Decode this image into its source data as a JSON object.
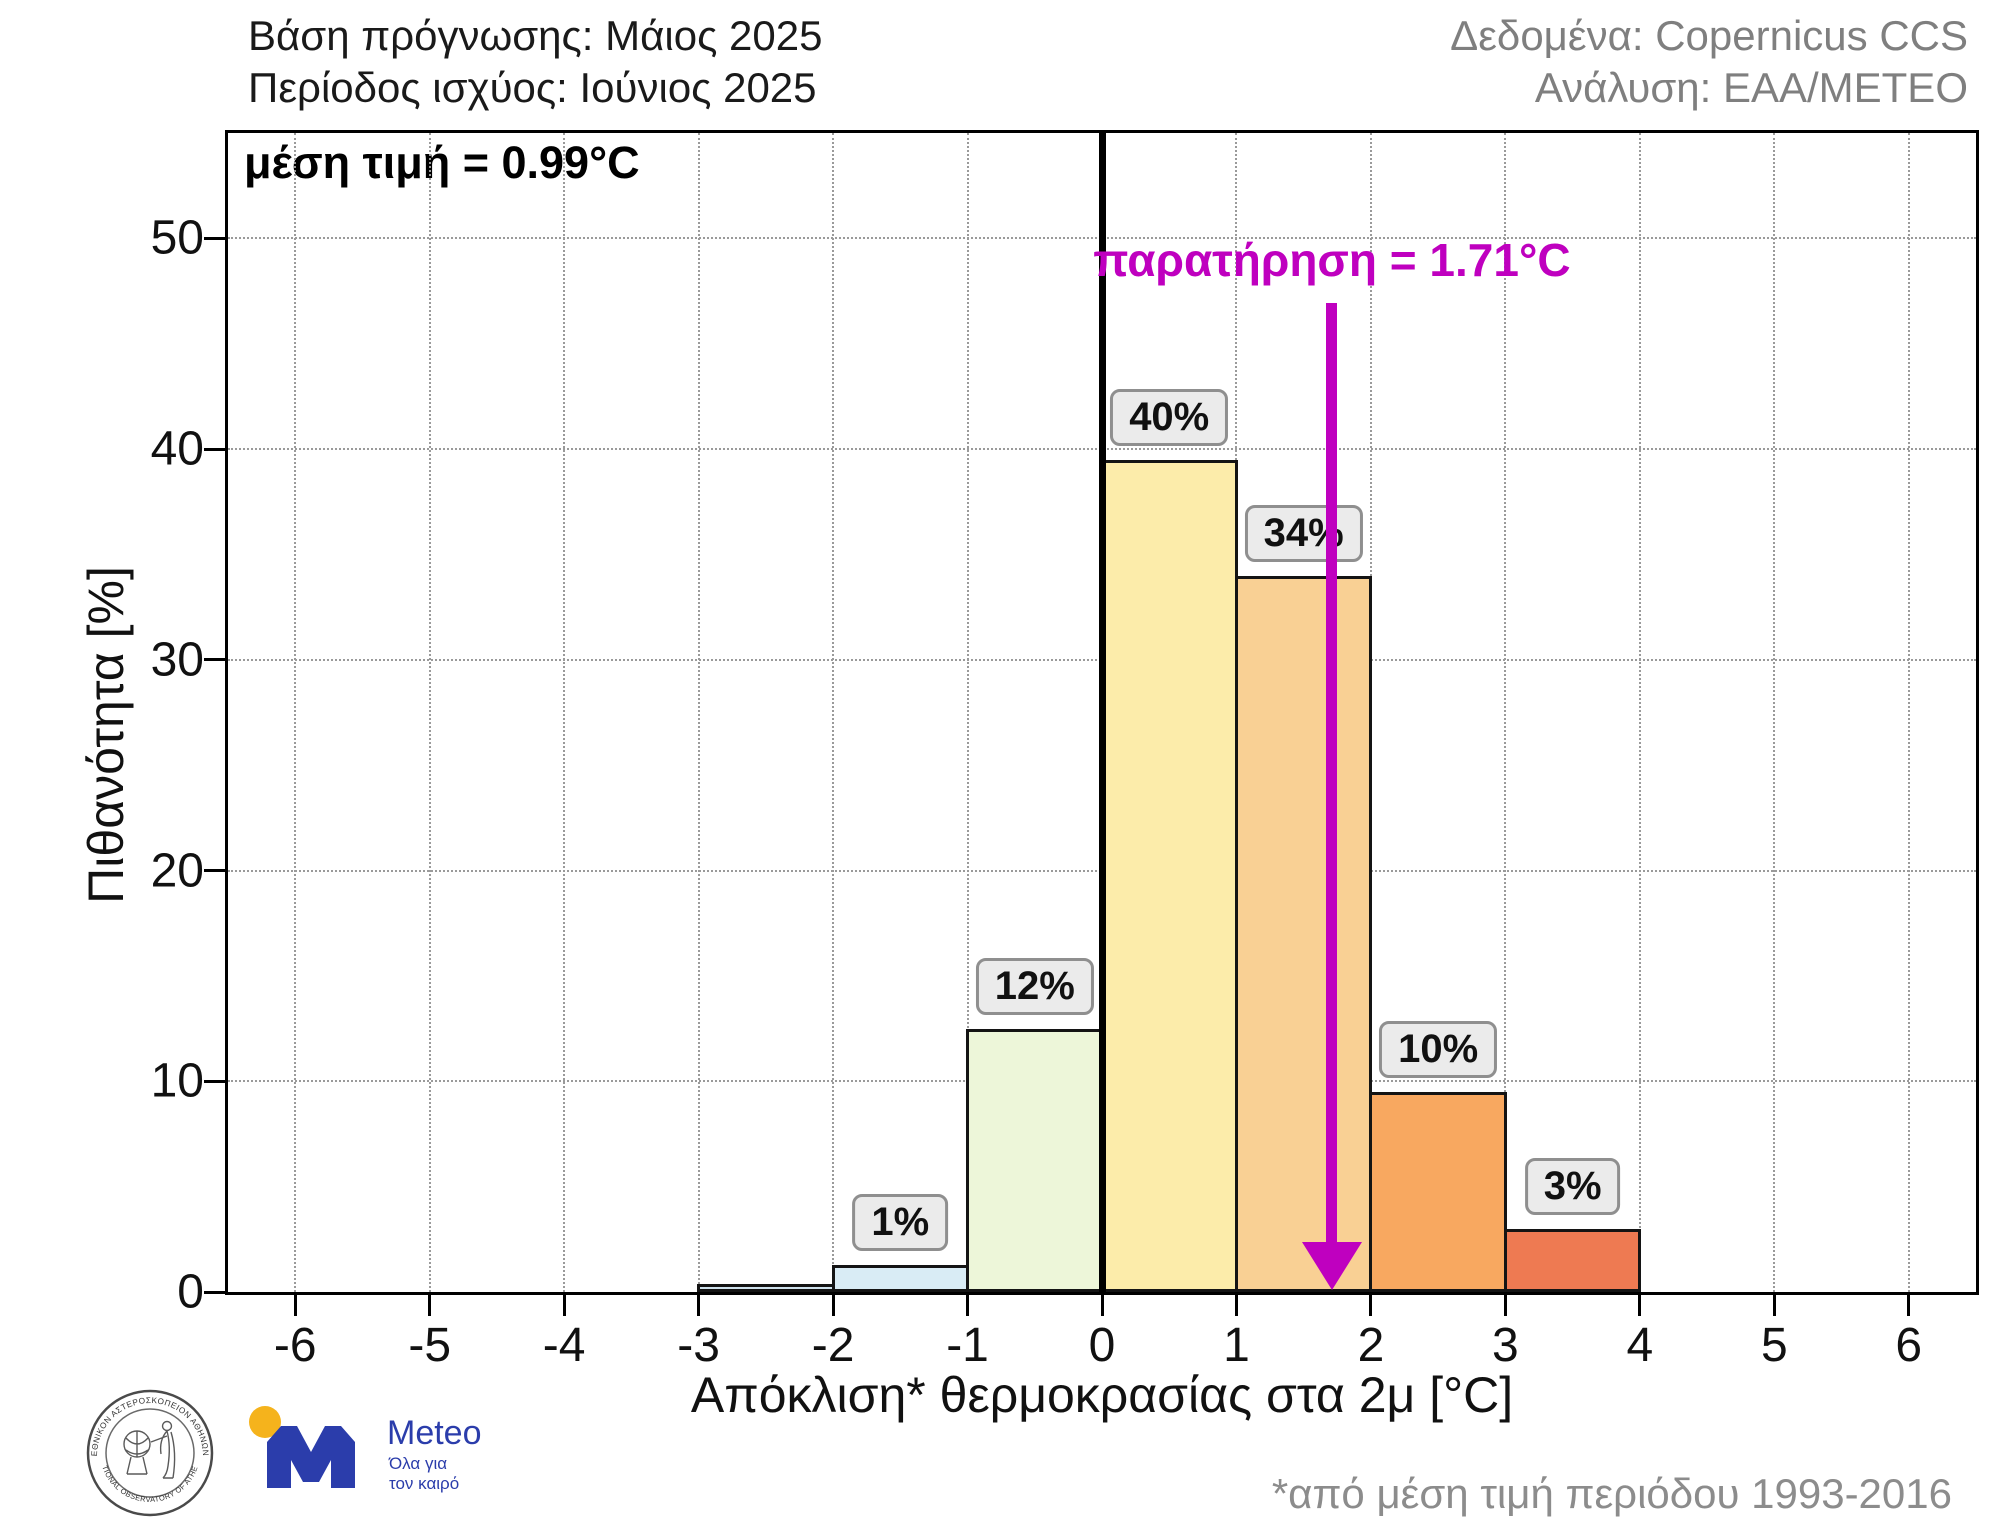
{
  "header": {
    "left_line1": "Βάση πρόγνωσης: Μάιος 2025",
    "left_line2": "Περίοδος ισχύος: Ιούνιος 2025",
    "right_line1": "Δεδομένα: Copernicus CCS",
    "right_line2": "Ανάλυση: ΕΑΑ/ΜΕΤΕΟ"
  },
  "chart_data": {
    "type": "bar",
    "title": "",
    "xlabel": "Απόκλιση* θερμοκρασίας στα 2μ [°C]",
    "ylabel": "Πιθανότητα [%]",
    "xlim": [
      -6.5,
      6.5
    ],
    "ylim": [
      0,
      55
    ],
    "xticks": [
      -6,
      -5,
      -4,
      -3,
      -2,
      -1,
      0,
      1,
      2,
      3,
      4,
      5,
      6
    ],
    "yticks": [
      0,
      10,
      20,
      30,
      40,
      50
    ],
    "grid": "dotted",
    "bins": [
      {
        "from": -3,
        "to": -2,
        "value": 0.4,
        "label": "",
        "color": "#cfe2ed"
      },
      {
        "from": -2,
        "to": -1,
        "value": 1.3,
        "label": "1%",
        "color": "#d9ecf5"
      },
      {
        "from": -1,
        "to": 0,
        "value": 12.5,
        "label": "12%",
        "color": "#edf6d9"
      },
      {
        "from": 0,
        "to": 1,
        "value": 39.5,
        "label": "40%",
        "color": "#fcecaa"
      },
      {
        "from": 1,
        "to": 2,
        "value": 34.0,
        "label": "34%",
        "color": "#f9d094"
      },
      {
        "from": 2,
        "to": 3,
        "value": 9.5,
        "label": "10%",
        "color": "#f8a860"
      },
      {
        "from": 3,
        "to": 4,
        "value": 3.0,
        "label": "3%",
        "color": "#ee7a52"
      }
    ],
    "zero_line_x": 0,
    "annotations": {
      "mean_label": "μέση τιμή = 0.99°C",
      "mean_value": 0.99,
      "observation_label": "παρατήρηση = 1.71°C",
      "observation_value": 1.71,
      "observation_color": "#bf00bf"
    }
  },
  "footer": {
    "footnote": "*από μέση τιμή περιόδου 1993-2016",
    "noa_seal": {
      "top_text": "ΕΘΝΙΚΟΝ ΑΣΤΕΡΟΣΚΟΠΕΙΟΝ ΑΘΗΝΩΝ",
      "bottom_text": "• NATIONAL OBSERVATORY OF ATHENS •"
    },
    "meteo_logo": {
      "name": "Meteo",
      "tagline_line1": "Όλα για",
      "tagline_line2": "τον καιρό",
      "blue": "#2b3dab",
      "yellow": "#f5b31c"
    }
  }
}
